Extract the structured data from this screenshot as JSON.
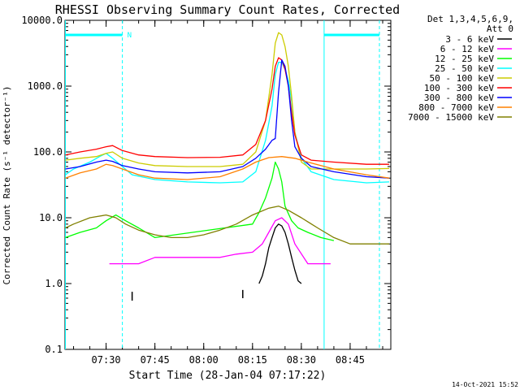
{
  "chart_data": {
    "type": "line",
    "title": "RHESSI Observing Summary Count Rates, Corrected",
    "xlabel": "Start Time (28-Jan-04 07:17:22)",
    "ylabel": "Corrected Count Rate (s⁻¹ detector⁻¹)",
    "y_scale": "log",
    "ylim": [
      0.1,
      10000
    ],
    "xlim": [
      "07:17:22",
      "08:57:30"
    ],
    "x_ticks": [
      "07:30",
      "07:45",
      "08:00",
      "08:15",
      "08:30",
      "08:45"
    ],
    "y_ticks": [
      "10000.0",
      "1000.0",
      "100.0",
      "10.0",
      "1.0",
      "0.1"
    ],
    "legend": {
      "position": "top-right",
      "header": [
        "Det 1,3,4,5,6,9,",
        "Att 0"
      ]
    },
    "series": [
      {
        "name": "3 - 6 keV",
        "color": "#000000",
        "x": [
          "08:17:00",
          "08:18:00",
          "08:19:00",
          "08:20:00",
          "08:21:00",
          "08:22:00",
          "08:23:00",
          "08:24:00",
          "08:25:00",
          "08:26:00",
          "08:27:00",
          "08:28:00",
          "08:29:00",
          "08:30:00"
        ],
        "y": [
          1,
          1.3,
          2,
          3.5,
          5,
          7,
          8,
          7.5,
          6,
          4,
          2.5,
          1.6,
          1.1,
          1
        ]
      },
      {
        "name": "6 - 12 keV",
        "color": "#ff00ff",
        "x": [
          "07:31:00",
          "07:35:00",
          "07:40:00",
          "07:45:00",
          "07:50:00",
          "07:55:00",
          "08:00:00",
          "08:05:00",
          "08:10:00",
          "08:15:00",
          "08:18:00",
          "08:20:00",
          "08:22:00",
          "08:24:00",
          "08:26:00",
          "08:28:00",
          "08:32:00",
          "08:36:00",
          "08:39:00"
        ],
        "y": [
          2,
          2,
          2,
          2.5,
          2.5,
          2.5,
          2.5,
          2.5,
          2.8,
          3,
          4,
          6,
          9,
          10,
          8,
          4,
          2,
          2,
          2
        ]
      },
      {
        "name": "12 - 25 keV",
        "color": "#00ff00",
        "x": [
          "07:17:30",
          "07:22:00",
          "07:27:00",
          "07:30:00",
          "07:33:00",
          "07:36:00",
          "07:40:00",
          "07:45:00",
          "08:15:00",
          "08:17:00",
          "08:19:00",
          "08:21:00",
          "08:22:00",
          "08:23:00",
          "08:24:00",
          "08:25:00",
          "08:27:00",
          "08:29:00",
          "08:32:00",
          "08:36:00",
          "08:40:00"
        ],
        "y": [
          5,
          6,
          7,
          9,
          11,
          9,
          7,
          5,
          8,
          12,
          20,
          40,
          70,
          55,
          35,
          15,
          9,
          7,
          6,
          5,
          4.5
        ]
      },
      {
        "name": "25 - 50 keV",
        "color": "#00ffff",
        "x": [
          "07:17:30",
          "07:20:00",
          "07:25:00",
          "07:28:00",
          "07:30:00",
          "07:32:00",
          "07:35:00",
          "07:38:00",
          "07:45:00",
          "07:55:00",
          "08:05:00",
          "08:12:00",
          "08:16:00",
          "08:19:00",
          "08:21:00",
          "08:22:00",
          "08:23:00",
          "08:24:00",
          "08:25:00",
          "08:26:00",
          "08:27:00",
          "08:28:00",
          "08:30:00",
          "08:33:00",
          "08:40:00",
          "08:50:00",
          "08:57:00"
        ],
        "y": [
          45,
          55,
          70,
          85,
          95,
          80,
          60,
          45,
          38,
          35,
          34,
          35,
          50,
          150,
          500,
          1500,
          2300,
          2300,
          1800,
          1200,
          600,
          200,
          80,
          50,
          38,
          34,
          35
        ]
      },
      {
        "name": "50 - 100 keV",
        "color": "#cccc00",
        "x": [
          "07:17:30",
          "07:22:00",
          "07:27:00",
          "07:30:00",
          "07:32:00",
          "07:35:00",
          "07:40:00",
          "07:45:00",
          "07:55:00",
          "08:05:00",
          "08:12:00",
          "08:16:00",
          "08:19:00",
          "08:21:00",
          "08:22:00",
          "08:23:00",
          "08:24:00",
          "08:25:00",
          "08:26:00",
          "08:27:00",
          "08:28:00",
          "08:30:00",
          "08:33:00",
          "08:40:00",
          "08:50:00",
          "08:57:00"
        ],
        "y": [
          75,
          80,
          85,
          95,
          100,
          80,
          68,
          62,
          60,
          60,
          65,
          100,
          300,
          1500,
          4500,
          6500,
          6000,
          4000,
          2000,
          700,
          200,
          70,
          55,
          55,
          55,
          56
        ]
      },
      {
        "name": "100 - 300 keV",
        "color": "#ff0000",
        "x": [
          "07:17:30",
          "07:22:00",
          "07:27:00",
          "07:30:00",
          "07:32:00",
          "07:35:00",
          "07:40:00",
          "07:45:00",
          "07:55:00",
          "08:05:00",
          "08:12:00",
          "08:16:00",
          "08:19:00",
          "08:21:00",
          "08:22:00",
          "08:23:00",
          "08:24:00",
          "08:25:00",
          "08:26:00",
          "08:27:00",
          "08:28:00",
          "08:30:00",
          "08:33:00",
          "08:40:00",
          "08:50:00",
          "08:57:00"
        ],
        "y": [
          90,
          100,
          110,
          120,
          125,
          105,
          90,
          85,
          82,
          83,
          90,
          130,
          300,
          900,
          2000,
          2700,
          2500,
          1800,
          1000,
          400,
          180,
          90,
          75,
          70,
          65,
          65
        ]
      },
      {
        "name": "300 - 800 keV",
        "color": "#0000ff",
        "x": [
          "07:17:30",
          "07:22:00",
          "07:27:00",
          "07:30:00",
          "07:32:00",
          "07:35:00",
          "07:40:00",
          "07:45:00",
          "07:55:00",
          "08:05:00",
          "08:12:00",
          "08:16:00",
          "08:19:00",
          "08:21:00",
          "08:22:00",
          "08:23:00",
          "08:24:00",
          "08:25:00",
          "08:26:00",
          "08:27:00",
          "08:28:00",
          "08:30:00",
          "08:33:00",
          "08:40:00",
          "08:50:00",
          "08:57:00"
        ],
        "y": [
          55,
          60,
          70,
          75,
          72,
          62,
          55,
          50,
          48,
          50,
          60,
          80,
          110,
          150,
          160,
          800,
          2500,
          2000,
          1000,
          300,
          120,
          80,
          60,
          50,
          42,
          40
        ]
      },
      {
        "name": "800 - 7000 keV",
        "color": "#ff8000",
        "x": [
          "07:17:30",
          "07:22:00",
          "07:27:00",
          "07:30:00",
          "07:32:00",
          "07:35:00",
          "07:40:00",
          "07:45:00",
          "07:55:00",
          "08:05:00",
          "08:12:00",
          "08:16:00",
          "08:20:00",
          "08:24:00",
          "08:28:00",
          "08:32:00",
          "08:40:00",
          "08:50:00",
          "08:57:00"
        ],
        "y": [
          40,
          48,
          55,
          65,
          62,
          55,
          45,
          40,
          38,
          42,
          55,
          70,
          82,
          85,
          80,
          70,
          55,
          45,
          40
        ]
      },
      {
        "name": "7000 - 15000 keV",
        "color": "#808000",
        "x": [
          "07:17:30",
          "07:20:00",
          "07:25:00",
          "07:30:00",
          "07:33:00",
          "07:36:00",
          "07:40:00",
          "07:45:00",
          "07:50:00",
          "07:55:00",
          "08:00:00",
          "08:05:00",
          "08:10:00",
          "08:15:00",
          "08:20:00",
          "08:23:00",
          "08:26:00",
          "08:30:00",
          "08:35:00",
          "08:40:00",
          "08:45:00",
          "08:50:00",
          "08:57:00"
        ],
        "y": [
          7,
          8,
          10,
          11,
          10,
          8,
          6.5,
          5.5,
          5,
          5,
          5.5,
          6.5,
          8,
          11,
          14,
          15,
          13,
          10,
          7,
          5,
          4,
          4,
          4
        ]
      }
    ],
    "vertical_markers": [
      {
        "time": "07:17:30",
        "color": "#00ffff",
        "style": "solid"
      },
      {
        "time": "07:35:00",
        "color": "#00ffff",
        "style": "dashed"
      },
      {
        "time": "08:37:00",
        "color": "#00ffff",
        "style": "solid"
      },
      {
        "time": "08:54:00",
        "color": "#00ffff",
        "style": "dashed"
      }
    ],
    "night_bars": [
      {
        "start": "07:17:30",
        "end": "07:35:00",
        "level": 6000,
        "label": "N"
      },
      {
        "start": "08:37:00",
        "end": "08:54:00",
        "level": 6000,
        "label": ""
      }
    ],
    "tick_events": [
      {
        "time": "07:38:00",
        "y_low": 0.55,
        "y_high": 0.75
      },
      {
        "time": "08:12:00",
        "y_low": 0.6,
        "y_high": 0.8
      }
    ],
    "footer_timestamp": "14-Oct-2021 15:52"
  }
}
